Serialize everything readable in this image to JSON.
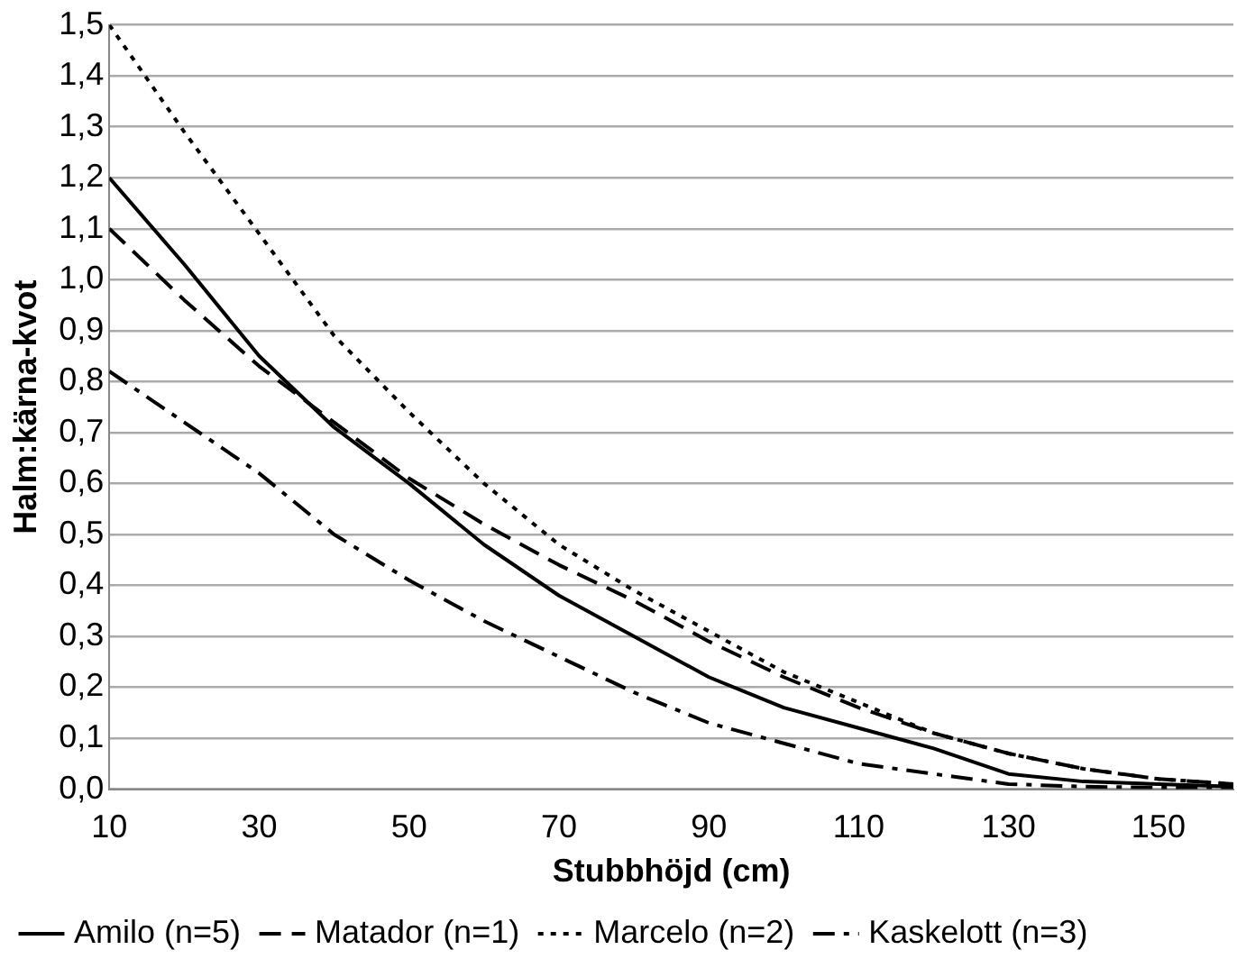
{
  "chart_data": {
    "type": "line",
    "xlabel": "Stubbhöjd (cm)",
    "ylabel": "Halm:kärna-kvot",
    "x": [
      10,
      20,
      30,
      40,
      50,
      60,
      70,
      80,
      90,
      100,
      110,
      120,
      130,
      140,
      150,
      160
    ],
    "series": [
      {
        "name": "Amilo (n=5)",
        "color": "#000000",
        "line_style": "solid",
        "values": [
          1.2,
          1.03,
          0.85,
          0.71,
          0.6,
          0.48,
          0.38,
          0.3,
          0.22,
          0.16,
          0.12,
          0.08,
          0.03,
          0.015,
          0.01,
          0.005
        ]
      },
      {
        "name": "Matador (n=1)",
        "color": "#000000",
        "line_style": "dashed",
        "values": [
          1.1,
          0.96,
          0.83,
          0.72,
          0.61,
          0.52,
          0.44,
          0.37,
          0.29,
          0.22,
          0.16,
          0.11,
          0.07,
          0.04,
          0.02,
          0.01
        ]
      },
      {
        "name": "Marcelo (n=2)",
        "color": "#000000",
        "line_style": "dotted",
        "values": [
          1.5,
          1.29,
          1.09,
          0.89,
          0.74,
          0.6,
          0.48,
          0.39,
          0.31,
          0.23,
          0.17,
          0.11,
          0.07,
          0.04,
          0.02,
          0.01
        ]
      },
      {
        "name": "Kaskelott (n=3)",
        "color": "#000000",
        "line_style": "dashdot",
        "values": [
          0.82,
          0.72,
          0.62,
          0.5,
          0.41,
          0.33,
          0.26,
          0.19,
          0.13,
          0.09,
          0.05,
          0.03,
          0.01,
          0.005,
          0.003,
          0.002
        ]
      }
    ],
    "xlim": [
      10,
      160
    ],
    "xticks": [
      10,
      30,
      50,
      70,
      90,
      110,
      130,
      150
    ],
    "ylim": [
      0,
      1.5
    ],
    "yticks": [
      {
        "value": 0,
        "label": "0,0"
      },
      {
        "value": 0.1,
        "label": "0,1"
      },
      {
        "value": 0.2,
        "label": "0,2"
      },
      {
        "value": 0.3,
        "label": "0,3"
      },
      {
        "value": 0.4,
        "label": "0,4"
      },
      {
        "value": 0.5,
        "label": "0,5"
      },
      {
        "value": 0.6,
        "label": "0,6"
      },
      {
        "value": 0.7,
        "label": "0,7"
      },
      {
        "value": 0.8,
        "label": "0,8"
      },
      {
        "value": 0.9,
        "label": "0,9"
      },
      {
        "value": 1,
        "label": "1,0"
      },
      {
        "value": 1.1,
        "label": "1,1"
      },
      {
        "value": 1.2,
        "label": "1,2"
      },
      {
        "value": 1.3,
        "label": "1,3"
      },
      {
        "value": 1.4,
        "label": "1,4"
      },
      {
        "value": 1.5,
        "label": "1,5"
      }
    ],
    "grid": "y",
    "legend": "bottom",
    "marker": "none"
  }
}
